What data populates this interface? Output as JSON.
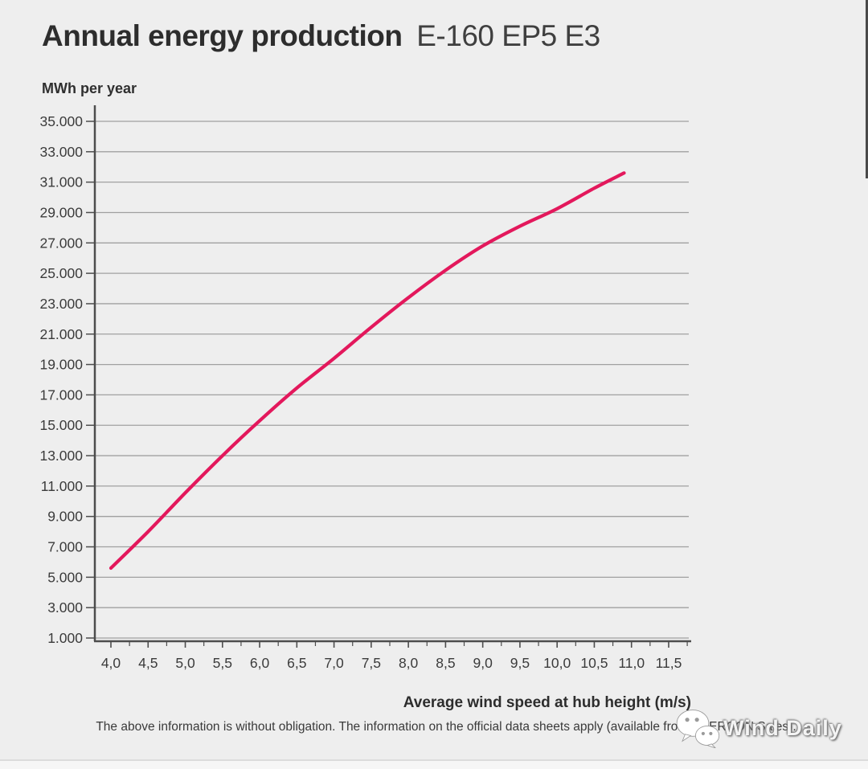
{
  "page": {
    "background": "#eeeeee",
    "footer_background": "#f6f6f6"
  },
  "header": {
    "title_bold": "Annual energy production",
    "title_model": "E-160 EP5 E3"
  },
  "chart_data": {
    "type": "line",
    "title": "Annual energy production E-160 EP5 E3",
    "ylabel": "MWh per year",
    "xlabel": "Average wind speed at hub height (m/s)",
    "x_range": [
      4.0,
      11.8
    ],
    "y_range": [
      1000,
      35000
    ],
    "grid": "horizontal",
    "legend": "none",
    "x_tick_values": [
      4.0,
      4.5,
      5.0,
      5.5,
      6.0,
      6.5,
      7.0,
      7.5,
      8.0,
      8.5,
      9.0,
      9.5,
      10.0,
      10.5,
      11.0,
      11.5
    ],
    "x_tick_labels": [
      "4,0",
      "4,5",
      "5,0",
      "5,5",
      "6,0",
      "6,5",
      "7,0",
      "7,5",
      "8,0",
      "8,5",
      "9,0",
      "9,5",
      "10,0",
      "10,5",
      "11,0",
      "11,5"
    ],
    "x_minor_tick_values": [
      4.25,
      4.75,
      5.25,
      5.75,
      6.25,
      6.75,
      7.25,
      7.75,
      8.25,
      8.75,
      9.25,
      9.75,
      10.25,
      10.75,
      11.25,
      11.75
    ],
    "y_tick_values": [
      1000,
      3000,
      5000,
      7000,
      9000,
      11000,
      13000,
      15000,
      17000,
      19000,
      21000,
      23000,
      25000,
      27000,
      29000,
      31000,
      33000,
      35000
    ],
    "y_tick_labels": [
      "1.000",
      "3.000",
      "5.000",
      "7.000",
      "9.000",
      "11.000",
      "13.000",
      "15.000",
      "17.000",
      "19.000",
      "21.000",
      "23.000",
      "25.000",
      "27.000",
      "29.000",
      "31.000",
      "33.000",
      "35.000"
    ],
    "colors": {
      "line": "#e3185c",
      "grid": "#a0a0a0",
      "axis": "#4d4d4d",
      "tick_text": "#3b3b3b"
    },
    "series": [
      {
        "name": "E-160 EP5 E3 annual energy production",
        "x": [
          4.0,
          4.5,
          5.0,
          5.5,
          6.0,
          6.5,
          7.0,
          7.5,
          8.0,
          8.5,
          9.0,
          9.5,
          10.0,
          10.5,
          10.9
        ],
        "y": [
          5600,
          8000,
          10550,
          13000,
          15300,
          17450,
          19400,
          21450,
          23400,
          25200,
          26800,
          28100,
          29250,
          30600,
          31600
        ]
      }
    ]
  },
  "footer": {
    "disclaimer": "The above information is without obligation. The information on the official data sheets apply (available from ENERCON Sales).",
    "watermark": {
      "icon": "wechat-icon",
      "text": "Wind Daily"
    }
  }
}
